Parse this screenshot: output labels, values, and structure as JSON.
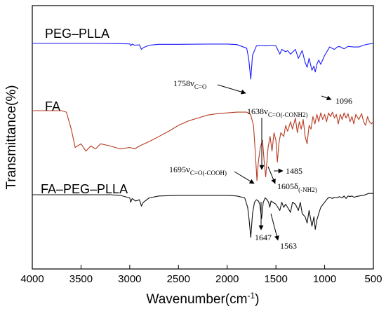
{
  "chart_data": {
    "type": "line",
    "xlabel": "Wavenumber(cm",
    "xlabel_sup": "-1",
    "xlabel_suffix": ")",
    "ylabel": "Transmittance(%)",
    "xlim": [
      4000,
      500
    ],
    "x_reversed": true,
    "x_ticks": [
      4000,
      3500,
      3000,
      2500,
      2000,
      1500,
      1000,
      500
    ],
    "grid": false,
    "series": [
      {
        "name": "PEG-PLLA",
        "color": "#1a1aff",
        "points": [
          [
            4000,
            0
          ],
          [
            3700,
            0
          ],
          [
            3300,
            0
          ],
          [
            3100,
            -0.3
          ],
          [
            3000,
            -0.8
          ],
          [
            2990,
            -4
          ],
          [
            2975,
            -1
          ],
          [
            2950,
            -3
          ],
          [
            2900,
            -2.5
          ],
          [
            2880,
            -10
          ],
          [
            2860,
            -7
          ],
          [
            2800,
            -3
          ],
          [
            2700,
            -1.5
          ],
          [
            2500,
            -1.5
          ],
          [
            2200,
            -1
          ],
          [
            2000,
            -1
          ],
          [
            1900,
            -2
          ],
          [
            1800,
            -8
          ],
          [
            1780,
            -25
          ],
          [
            1758,
            -60
          ],
          [
            1740,
            -20
          ],
          [
            1700,
            -4
          ],
          [
            1650,
            -3
          ],
          [
            1600,
            -4
          ],
          [
            1550,
            -3
          ],
          [
            1500,
            -4
          ],
          [
            1460,
            -18
          ],
          [
            1440,
            -10
          ],
          [
            1400,
            -14
          ],
          [
            1380,
            -12
          ],
          [
            1350,
            -18
          ],
          [
            1300,
            -10
          ],
          [
            1270,
            -25
          ],
          [
            1230,
            -12
          ],
          [
            1200,
            -32
          ],
          [
            1180,
            -40
          ],
          [
            1160,
            -25
          ],
          [
            1130,
            -45
          ],
          [
            1110,
            -38
          ],
          [
            1096,
            -48
          ],
          [
            1080,
            -35
          ],
          [
            1060,
            -28
          ],
          [
            1040,
            -35
          ],
          [
            1000,
            -20
          ],
          [
            970,
            -12
          ],
          [
            950,
            -6
          ],
          [
            900,
            -10
          ],
          [
            870,
            -6
          ],
          [
            850,
            -5
          ],
          [
            800,
            -9
          ],
          [
            760,
            -5
          ],
          [
            700,
            -6
          ],
          [
            650,
            -6
          ],
          [
            600,
            -3
          ],
          [
            550,
            -1
          ],
          [
            500,
            0
          ]
        ]
      },
      {
        "name": "FA",
        "color": "#b83a1f",
        "points": [
          [
            4000,
            0
          ],
          [
            3800,
            0
          ],
          [
            3700,
            0
          ],
          [
            3650,
            -2
          ],
          [
            3600,
            -25
          ],
          [
            3560,
            -50
          ],
          [
            3500,
            -45
          ],
          [
            3450,
            -55
          ],
          [
            3400,
            -48
          ],
          [
            3350,
            -52
          ],
          [
            3300,
            -45
          ],
          [
            3200,
            -48
          ],
          [
            3100,
            -52
          ],
          [
            3000,
            -50
          ],
          [
            2950,
            -52
          ],
          [
            2900,
            -48
          ],
          [
            2800,
            -42
          ],
          [
            2700,
            -35
          ],
          [
            2600,
            -28
          ],
          [
            2500,
            -20
          ],
          [
            2400,
            -14
          ],
          [
            2300,
            -10
          ],
          [
            2200,
            -6
          ],
          [
            2100,
            -4
          ],
          [
            2000,
            -3
          ],
          [
            1900,
            -2
          ],
          [
            1800,
            -2
          ],
          [
            1760,
            -5
          ],
          [
            1730,
            -20
          ],
          [
            1710,
            -60
          ],
          [
            1695,
            -95
          ],
          [
            1680,
            -70
          ],
          [
            1660,
            -50
          ],
          [
            1638,
            -40
          ],
          [
            1620,
            -70
          ],
          [
            1605,
            -90
          ],
          [
            1580,
            -50
          ],
          [
            1560,
            -35
          ],
          [
            1540,
            -55
          ],
          [
            1520,
            -30
          ],
          [
            1500,
            -40
          ],
          [
            1485,
            -70
          ],
          [
            1470,
            -45
          ],
          [
            1450,
            -30
          ],
          [
            1420,
            -35
          ],
          [
            1400,
            -20
          ],
          [
            1380,
            -28
          ],
          [
            1350,
            -15
          ],
          [
            1330,
            -25
          ],
          [
            1300,
            -10
          ],
          [
            1280,
            -30
          ],
          [
            1260,
            -15
          ],
          [
            1240,
            -25
          ],
          [
            1220,
            -12
          ],
          [
            1200,
            -35
          ],
          [
            1180,
            -45
          ],
          [
            1160,
            -20
          ],
          [
            1140,
            -25
          ],
          [
            1120,
            -8
          ],
          [
            1100,
            -18
          ],
          [
            1080,
            -5
          ],
          [
            1060,
            -15
          ],
          [
            1040,
            -3
          ],
          [
            1020,
            -12
          ],
          [
            1000,
            -5
          ],
          [
            980,
            -15
          ],
          [
            960,
            -3
          ],
          [
            940,
            -8
          ],
          [
            920,
            -2
          ],
          [
            900,
            -10
          ],
          [
            880,
            -5
          ],
          [
            860,
            -18
          ],
          [
            840,
            -5
          ],
          [
            820,
            -12
          ],
          [
            800,
            -3
          ],
          [
            780,
            -10
          ],
          [
            760,
            -4
          ],
          [
            740,
            -15
          ],
          [
            720,
            -8
          ],
          [
            700,
            -18
          ],
          [
            680,
            -5
          ],
          [
            650,
            -12
          ],
          [
            620,
            -4
          ],
          [
            600,
            -15
          ],
          [
            580,
            -20
          ],
          [
            560,
            -8
          ],
          [
            540,
            -15
          ],
          [
            520,
            -18
          ],
          [
            500,
            -15
          ]
        ]
      },
      {
        "name": "FA-PEG-PLLA",
        "color": "#111111",
        "points": [
          [
            4000,
            0
          ],
          [
            3800,
            0
          ],
          [
            3500,
            0
          ],
          [
            3200,
            0
          ],
          [
            3100,
            -1
          ],
          [
            3000,
            -5
          ],
          [
            2990,
            -12
          ],
          [
            2975,
            -6
          ],
          [
            2940,
            -10
          ],
          [
            2900,
            -8
          ],
          [
            2880,
            -18
          ],
          [
            2860,
            -12
          ],
          [
            2800,
            -5
          ],
          [
            2700,
            -2
          ],
          [
            2500,
            -1
          ],
          [
            2200,
            -1
          ],
          [
            2000,
            -1
          ],
          [
            1900,
            -2
          ],
          [
            1820,
            -5
          ],
          [
            1790,
            -20
          ],
          [
            1775,
            -40
          ],
          [
            1758,
            -68
          ],
          [
            1740,
            -30
          ],
          [
            1720,
            -12
          ],
          [
            1700,
            -8
          ],
          [
            1680,
            -10
          ],
          [
            1665,
            -15
          ],
          [
            1647,
            -38
          ],
          [
            1630,
            -12
          ],
          [
            1610,
            -5
          ],
          [
            1590,
            -8
          ],
          [
            1575,
            -12
          ],
          [
            1563,
            -20
          ],
          [
            1550,
            -10
          ],
          [
            1500,
            -15
          ],
          [
            1460,
            -25
          ],
          [
            1440,
            -12
          ],
          [
            1420,
            -20
          ],
          [
            1400,
            -15
          ],
          [
            1380,
            -20
          ],
          [
            1350,
            -28
          ],
          [
            1330,
            -12
          ],
          [
            1300,
            -15
          ],
          [
            1270,
            -25
          ],
          [
            1250,
            -12
          ],
          [
            1230,
            -30
          ],
          [
            1200,
            -35
          ],
          [
            1180,
            -45
          ],
          [
            1160,
            -25
          ],
          [
            1130,
            -50
          ],
          [
            1110,
            -35
          ],
          [
            1096,
            -55
          ],
          [
            1080,
            -40
          ],
          [
            1060,
            -30
          ],
          [
            1040,
            -20
          ],
          [
            1000,
            -12
          ],
          [
            970,
            -6
          ],
          [
            950,
            -4
          ],
          [
            920,
            -6
          ],
          [
            900,
            -4
          ],
          [
            870,
            -5
          ],
          [
            850,
            -3
          ],
          [
            820,
            -5
          ],
          [
            800,
            -2
          ],
          [
            780,
            -6
          ],
          [
            760,
            -2
          ],
          [
            740,
            -3
          ],
          [
            720,
            -2
          ],
          [
            700,
            -4
          ],
          [
            650,
            -2
          ],
          [
            600,
            -1
          ],
          [
            550,
            2
          ],
          [
            500,
            2
          ]
        ]
      }
    ],
    "annotations": [
      {
        "base": "1758",
        "greek": "ν",
        "sub": "C=O"
      },
      {
        "base": "1096"
      },
      {
        "base": "1638",
        "greek": "ν",
        "sub": "C=O(-CONH2)"
      },
      {
        "base": "1695",
        "greek": "ν",
        "sub": "C=O(-COOH)"
      },
      {
        "base": "1485"
      },
      {
        "base": "1605",
        "greek": "δ",
        "sub": "(-NH2)"
      },
      {
        "base": "1647"
      },
      {
        "base": "1563"
      }
    ]
  }
}
